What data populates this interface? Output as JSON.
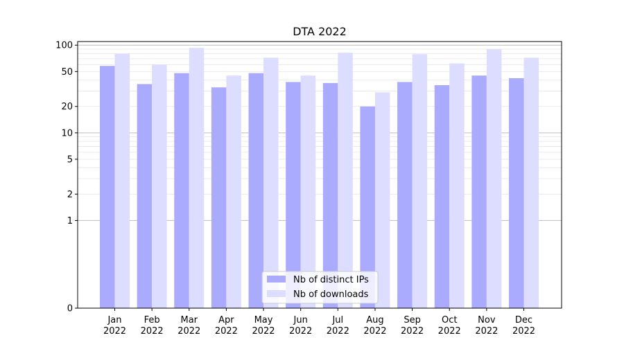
{
  "chart_data": {
    "type": "bar",
    "title": "DTA 2022",
    "xlabel": "",
    "ylabel": "",
    "y_scale": "symlog",
    "ylim": [
      0,
      110
    ],
    "yticks": [
      0,
      1,
      2,
      5,
      10,
      20,
      50,
      100
    ],
    "categories": [
      [
        "Jan",
        "2022"
      ],
      [
        "Feb",
        "2022"
      ],
      [
        "Mar",
        "2022"
      ],
      [
        "Apr",
        "2022"
      ],
      [
        "May",
        "2022"
      ],
      [
        "Jun",
        "2022"
      ],
      [
        "Jul",
        "2022"
      ],
      [
        "Aug",
        "2022"
      ],
      [
        "Sep",
        "2022"
      ],
      [
        "Oct",
        "2022"
      ],
      [
        "Nov",
        "2022"
      ],
      [
        "Dec",
        "2022"
      ]
    ],
    "series": [
      {
        "name": "Nb of distinct IPs",
        "color": "#aaaaff",
        "values": [
          58,
          36,
          48,
          33,
          48,
          38,
          37,
          20,
          38,
          35,
          45,
          42
        ]
      },
      {
        "name": "Nb of downloads",
        "color": "#ddddff",
        "values": [
          80,
          60,
          93,
          45,
          72,
          45,
          82,
          29,
          79,
          62,
          90,
          72
        ]
      }
    ],
    "grid": true,
    "legend_position": "bottom-center"
  }
}
